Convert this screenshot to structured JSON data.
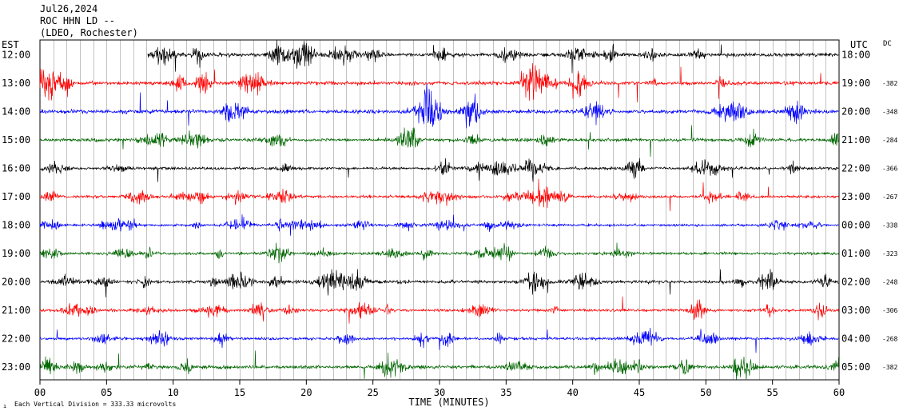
{
  "header": {
    "date": "Jul26,2024",
    "station": "ROC HHN LD --",
    "network": "(LDEO, Rochester)"
  },
  "footer": {
    "scale_note": "Each Vertical Division =  333.33 microvolts",
    "mark": "ı"
  },
  "chart_data": {
    "type": "line",
    "title": "",
    "xlabel": "TIME (MINUTES)",
    "left_axis_label": "EST",
    "right_axis_label": "UTC",
    "dc_label": "DC",
    "xlim": [
      0,
      60
    ],
    "x_ticks": [
      "00",
      "05",
      "10",
      "15",
      "20",
      "25",
      "30",
      "35",
      "40",
      "45",
      "50",
      "55",
      "60"
    ],
    "grid": "vertical lines every minute",
    "trace_colors": [
      "#000000",
      "#ff0000",
      "#0000ff",
      "#006600"
    ],
    "rows": [
      {
        "est": "12:00",
        "utc": "18:00",
        "dc": "",
        "start_min": 8.1,
        "amp": 1.0,
        "busy": 0.85
      },
      {
        "est": "13:00",
        "utc": "19:00",
        "dc": "-382",
        "start_min": 0,
        "amp": 1.0,
        "busy": 0.85
      },
      {
        "est": "14:00",
        "utc": "20:00",
        "dc": "-348",
        "start_min": 0,
        "amp": 1.0,
        "busy": 0.8
      },
      {
        "est": "15:00",
        "utc": "21:00",
        "dc": "-284",
        "start_min": 0,
        "amp": 0.9,
        "busy": 0.65
      },
      {
        "est": "16:00",
        "utc": "22:00",
        "dc": "-366",
        "start_min": 0,
        "amp": 0.75,
        "busy": 0.6
      },
      {
        "est": "17:00",
        "utc": "23:00",
        "dc": "-267",
        "start_min": 0,
        "amp": 0.75,
        "busy": 0.55
      },
      {
        "est": "18:00",
        "utc": "00:00",
        "dc": "-338",
        "start_min": 0,
        "amp": 0.7,
        "busy": 0.5
      },
      {
        "est": "19:00",
        "utc": "01:00",
        "dc": "-323",
        "start_min": 0,
        "amp": 0.75,
        "busy": 0.55
      },
      {
        "est": "20:00",
        "utc": "02:00",
        "dc": "-248",
        "start_min": 0,
        "amp": 0.85,
        "busy": 0.6
      },
      {
        "est": "21:00",
        "utc": "03:00",
        "dc": "-306",
        "start_min": 0,
        "amp": 0.75,
        "busy": 0.55
      },
      {
        "est": "22:00",
        "utc": "04:00",
        "dc": "-268",
        "start_min": 0,
        "amp": 0.75,
        "busy": 0.55
      },
      {
        "est": "23:00",
        "utc": "05:00",
        "dc": "-382",
        "start_min": 0,
        "amp": 0.9,
        "busy": 0.65
      }
    ]
  }
}
